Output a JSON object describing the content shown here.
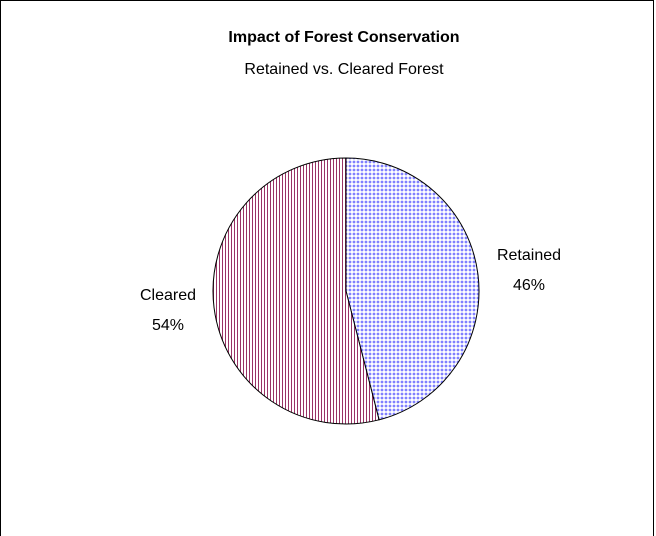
{
  "chart_data": {
    "type": "pie",
    "title": "Impact of Forest Conservation",
    "subtitle": "Retained vs. Cleared Forest",
    "slices": [
      {
        "label": "Retained",
        "value": 46,
        "value_label": "46%",
        "fill_color": "#8080ff",
        "pattern": "dots"
      },
      {
        "label": "Cleared",
        "value": 54,
        "value_label": "54%",
        "fill_color": "#993366",
        "pattern": "vertical-lines"
      }
    ],
    "start_angle": "12 o'clock",
    "direction": "clockwise",
    "outline_color": "#000000",
    "background_color": "#ffffff"
  }
}
